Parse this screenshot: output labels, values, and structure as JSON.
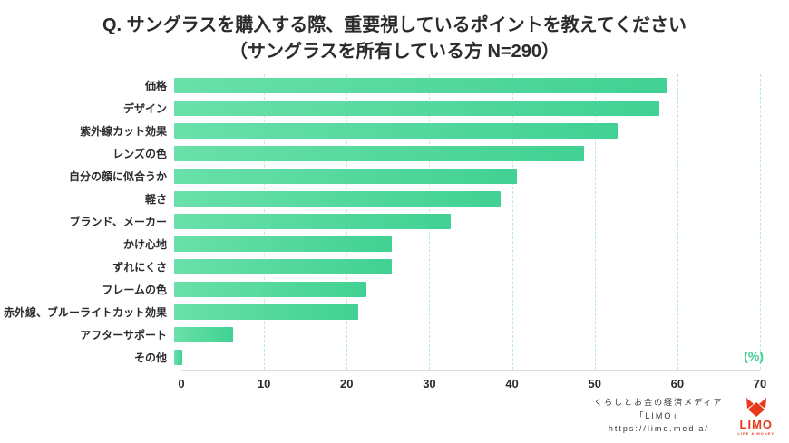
{
  "title": {
    "line1": "Q. サングラスを購入する際、重要視しているポイントを教えてください",
    "line2": "（サングラスを所有している方 N=290）"
  },
  "chart_data": {
    "type": "bar",
    "orientation": "horizontal",
    "title": "Q. サングラスを購入する際、重要視しているポイントを教えてください（サングラスを所有している方 N=290）",
    "categories": [
      "価格",
      "デザイン",
      "紫外線カット効果",
      "レンズの色",
      "自分の顔に似合うか",
      "軽さ",
      "ブランド、メーカー",
      "かけ心地",
      "ずれにくさ",
      "フレームの色",
      "赤外線、ブルーライトカット効果",
      "アフターサポート",
      "その他"
    ],
    "values": [
      59,
      58,
      53,
      49,
      41,
      39,
      33,
      26,
      26,
      23,
      22,
      7,
      1
    ],
    "xlim": [
      0,
      70
    ],
    "xticks": [
      0,
      10,
      20,
      30,
      40,
      50,
      60,
      70
    ],
    "unit_label": "(%)",
    "grid": "dashed-vertical",
    "bar_color_start": "#69e0a9",
    "bar_color_end": "#41d193",
    "gridline_color": "#b9ecd2"
  },
  "footer": {
    "line1": "くらしとお金の経済メディア",
    "line2": "「LIMO」",
    "line3": "https://limo.media/",
    "logo_word": "LIMO",
    "logo_sub": "LIFE & MONEY",
    "logo_color": "#e8391c"
  }
}
